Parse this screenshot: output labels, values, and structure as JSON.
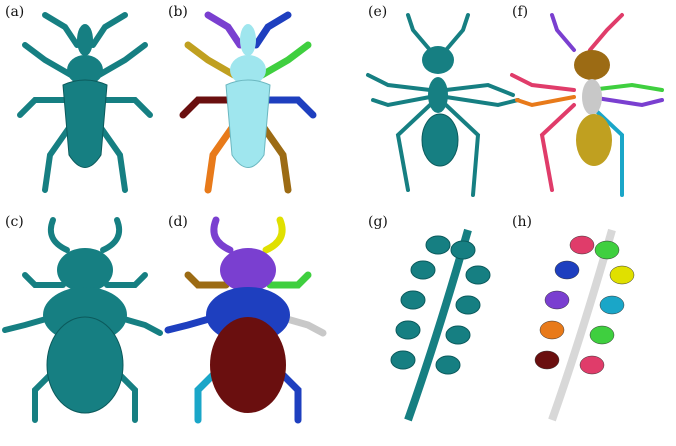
{
  "figure": {
    "panels": [
      {
        "label": "(a)",
        "subject": "beetle-weevil",
        "style": "mesh"
      },
      {
        "label": "(b)",
        "subject": "beetle-weevil",
        "style": "segmented"
      },
      {
        "label": "(c)",
        "subject": "stag-beetle",
        "style": "mesh"
      },
      {
        "label": "(d)",
        "subject": "stag-beetle",
        "style": "segmented"
      },
      {
        "label": "(e)",
        "subject": "ant",
        "style": "mesh"
      },
      {
        "label": "(f)",
        "subject": "ant",
        "style": "segmented"
      },
      {
        "label": "(g)",
        "subject": "plant-stalk",
        "style": "mesh"
      },
      {
        "label": "(h)",
        "subject": "plant-stalk",
        "style": "segmented"
      }
    ]
  },
  "colors": {
    "mesh": "#167f82",
    "mesh_dark": "#0b5a5c",
    "segments": [
      "#9fe6ee",
      "#6a0f0f",
      "#c0a020",
      "#7a3fd0",
      "#1e3fbf",
      "#e03c6a",
      "#3fcf3f",
      "#e87a1a",
      "#9c6b14",
      "#1aa6c8",
      "#c8c8c8",
      "#e0e000"
    ]
  }
}
